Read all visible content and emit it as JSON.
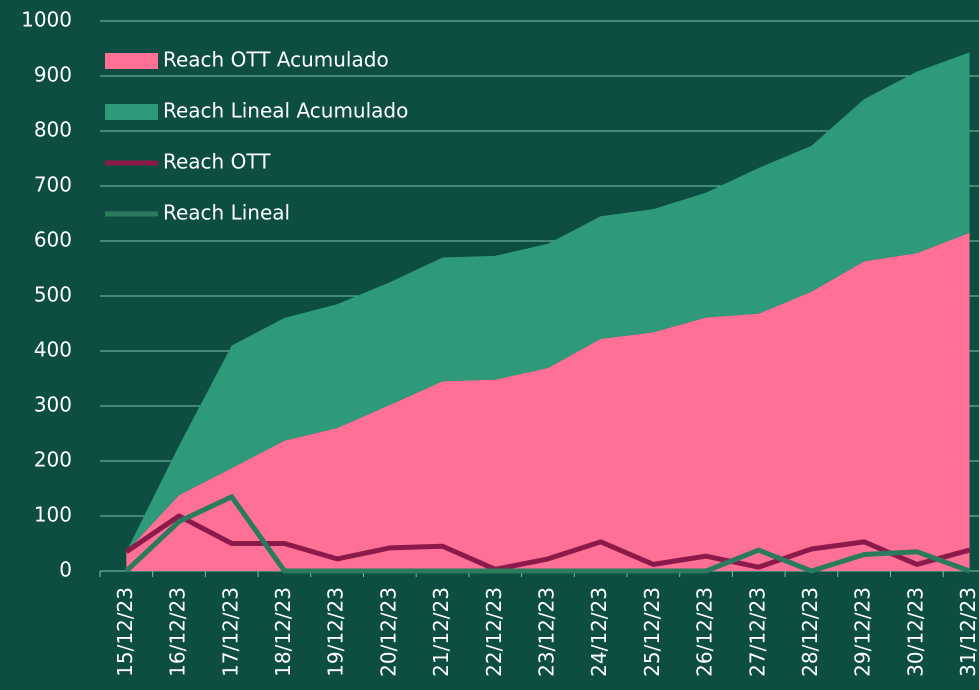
{
  "chart_data": {
    "type": "area",
    "categories": [
      "15/12/23",
      "16/12/23",
      "17/12/23",
      "18/12/23",
      "19/12/23",
      "20/12/23",
      "21/12/23",
      "22/12/23",
      "23/12/23",
      "24/12/23",
      "25/12/23",
      "26/12/23",
      "27/12/23",
      "28/12/23",
      "29/12/23",
      "30/12/23",
      "31/12/23"
    ],
    "series": [
      {
        "name": "Reach OTT Acumulado",
        "type": "area",
        "color": "#ff7096",
        "values": [
          35,
          138,
          187,
          237,
          260,
          302,
          345,
          348,
          369,
          422,
          434,
          461,
          468,
          508,
          563,
          578,
          615
        ]
      },
      {
        "name": "Reach Lineal Acumulado",
        "type": "area",
        "color": "#2e9a7a",
        "values": [
          0,
          90,
          223,
          223,
          225,
          223,
          225,
          225,
          226,
          223,
          224,
          227,
          265,
          265,
          295,
          330,
          328
        ]
      },
      {
        "name": "Reach OTT",
        "type": "line",
        "color": "#8b1a4a",
        "values": [
          35,
          100,
          50,
          50,
          22,
          42,
          45,
          3,
          22,
          53,
          12,
          27,
          7,
          40,
          53,
          12,
          38
        ]
      },
      {
        "name": "Reach Lineal",
        "type": "line",
        "color": "#2a7a5c",
        "values": [
          0,
          90,
          135,
          0,
          0,
          0,
          0,
          0,
          0,
          0,
          0,
          0,
          38,
          0,
          30,
          35,
          0
        ]
      }
    ],
    "stacked": true,
    "ylim": [
      0,
      1000
    ],
    "yticks": [
      0,
      100,
      200,
      300,
      400,
      500,
      600,
      700,
      800,
      900,
      1000
    ],
    "grid": true,
    "legend": "top-left"
  }
}
